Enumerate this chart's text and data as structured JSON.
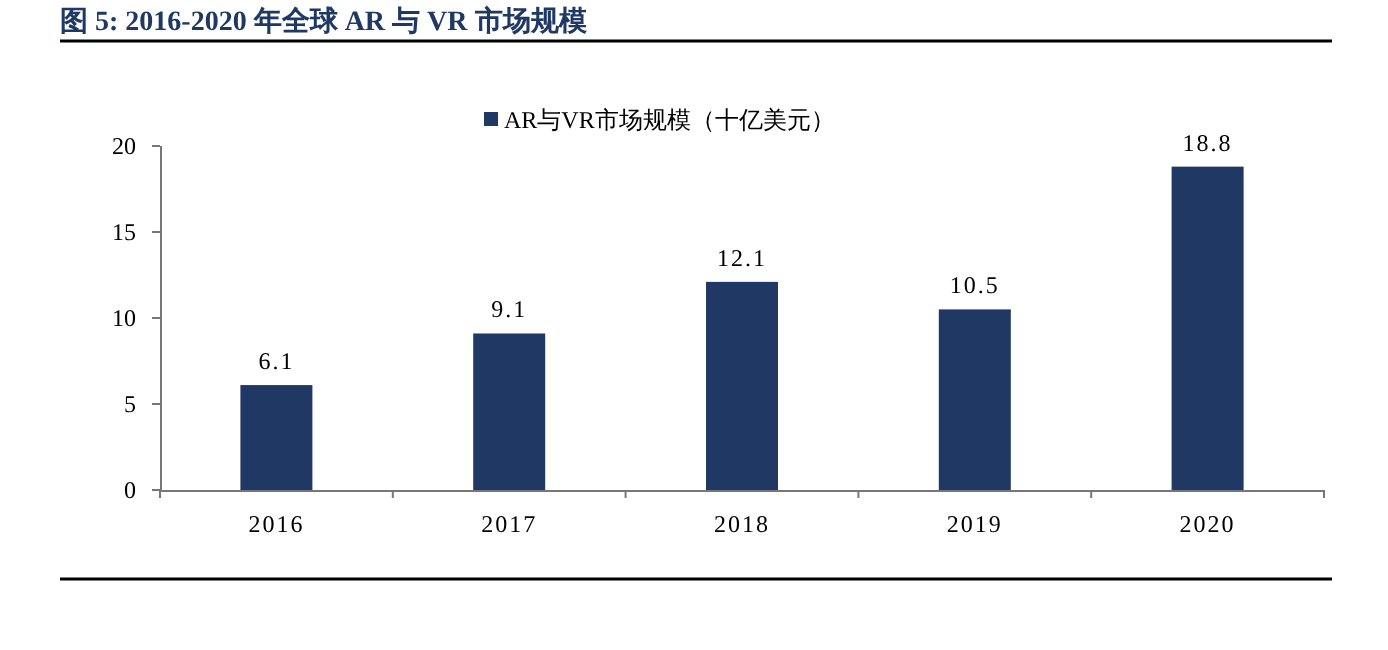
{
  "chart_data": {
    "type": "bar",
    "title": "图 5:  2016-2020 年全球 AR 与 VR 市场规模",
    "categories": [
      "2016",
      "2017",
      "2018",
      "2019",
      "2020"
    ],
    "series": [
      {
        "name": "AR与VR市场规模（十亿美元）",
        "color": "#1f3864",
        "values": [
          6.1,
          9.1,
          12.1,
          10.5,
          18.8
        ]
      }
    ],
    "ylim": [
      0,
      20
    ],
    "yticks": [
      0,
      5,
      10,
      15,
      20
    ],
    "data_labels": true,
    "legend": "top",
    "grid": false
  }
}
